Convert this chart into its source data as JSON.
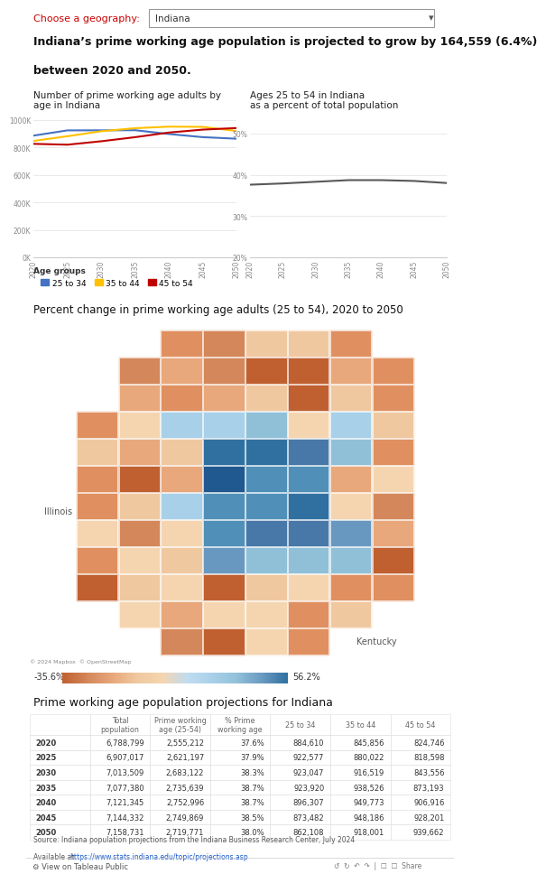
{
  "title_geo_label": "Choose a geography:",
  "title_geo_value": "Indiana",
  "headline_line1": "Indiana’s prime working age population is projected to grow by 164,559 (6.4%)",
  "headline_line2": "between 2020 and 2050.",
  "chart1_title_line1": "Number of prime working age adults by",
  "chart1_title_line2": "age in Indiana",
  "chart2_title_line1": "Ages 25 to 54 in Indiana",
  "chart2_title_line2": "as a percent of total population",
  "years": [
    2020,
    2025,
    2030,
    2035,
    2040,
    2045,
    2050
  ],
  "age_25_34": [
    884610,
    922577,
    923047,
    923920,
    896307,
    873482,
    862108
  ],
  "age_35_44": [
    845856,
    880022,
    916519,
    938526,
    949773,
    948186,
    918001
  ],
  "age_45_54": [
    824746,
    818598,
    843556,
    873193,
    906916,
    928201,
    939662
  ],
  "pct_prime": [
    37.6,
    37.9,
    38.3,
    38.7,
    38.7,
    38.5,
    38.0
  ],
  "color_25_34": "#4472C4",
  "color_35_44": "#FFC000",
  "color_45_54": "#C00000",
  "color_pct": "#595959",
  "map_title": "Percent change in prime working age adults (25 to 54), 2020 to 2050",
  "legend_min": "-35.6%",
  "legend_max": "56.2%",
  "table_title": "Prime working age population projections for Indiana",
  "table_years": [
    2020,
    2025,
    2030,
    2035,
    2040,
    2045,
    2050
  ],
  "table_total_pop": [
    "6,788,799",
    "6,907,017",
    "7,013,509",
    "7,077,380",
    "7,121,345",
    "7,144,332",
    "7,158,731"
  ],
  "table_prime_working": [
    "2,555,212",
    "2,621,197",
    "2,683,122",
    "2,735,639",
    "2,752,996",
    "2,749,869",
    "2,719,771"
  ],
  "table_pct_prime": [
    "37.6%",
    "37.9%",
    "38.3%",
    "38.7%",
    "38.7%",
    "38.5%",
    "38.0%"
  ],
  "table_25_34": [
    "884,610",
    "922,577",
    "923,047",
    "923,920",
    "896,307",
    "873,482",
    "862,108"
  ],
  "table_35_44": [
    "845,856",
    "880,022",
    "916,519",
    "938,526",
    "949,773",
    "948,186",
    "918,001"
  ],
  "table_45_54": [
    "824,746",
    "818,598",
    "843,556",
    "873,193",
    "906,916",
    "928,201",
    "939,662"
  ],
  "source_line1": "Source: Indiana population projections from the Indiana Business Research Center, July 2024",
  "source_line2_plain": "Available at ",
  "source_line2_link": "https://www.stats.indiana.edu/topic/projections.asp",
  "bg_color": "#ffffff"
}
